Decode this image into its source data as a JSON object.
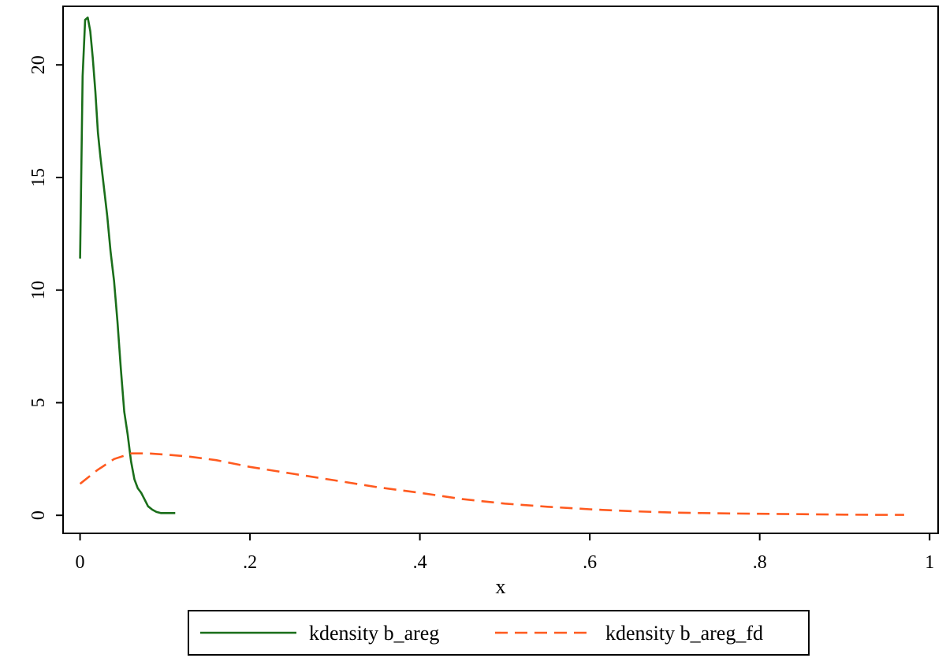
{
  "chart_data": {
    "type": "line",
    "title": "",
    "xlabel": "x",
    "ylabel": "",
    "xlim": [
      -0.02,
      1.01
    ],
    "ylim": [
      -0.8,
      22.6
    ],
    "x_ticks": [
      0,
      0.2,
      0.4,
      0.6,
      0.8,
      1
    ],
    "x_tick_labels": [
      "0",
      ".2",
      ".4",
      ".6",
      ".8",
      "1"
    ],
    "y_ticks": [
      0,
      5,
      10,
      15,
      20
    ],
    "y_tick_labels": [
      "0",
      "5",
      "10",
      "15",
      "20"
    ],
    "grid": false,
    "legend_position": "bottom",
    "series": [
      {
        "name": "kdensity b_areg",
        "color": "#1a6e1a",
        "style": "solid",
        "x": [
          0.0,
          0.003,
          0.006,
          0.009,
          0.012,
          0.015,
          0.018,
          0.021,
          0.024,
          0.028,
          0.032,
          0.036,
          0.04,
          0.044,
          0.048,
          0.052,
          0.056,
          0.06,
          0.064,
          0.068,
          0.072,
          0.076,
          0.08,
          0.085,
          0.09,
          0.095,
          0.1,
          0.105,
          0.112
        ],
        "values": [
          11.4,
          19.5,
          22.0,
          22.1,
          21.5,
          20.3,
          18.8,
          17.0,
          15.9,
          14.6,
          13.3,
          11.7,
          10.4,
          8.6,
          6.5,
          4.6,
          3.6,
          2.4,
          1.6,
          1.2,
          1.0,
          0.7,
          0.4,
          0.25,
          0.15,
          0.1,
          0.1,
          0.1,
          0.1
        ]
      },
      {
        "name": "kdensity b_areg_fd",
        "color": "#ff5a1f",
        "style": "dashed",
        "x": [
          0.0,
          0.02,
          0.04,
          0.06,
          0.08,
          0.1,
          0.13,
          0.16,
          0.2,
          0.25,
          0.3,
          0.35,
          0.4,
          0.45,
          0.5,
          0.55,
          0.6,
          0.65,
          0.7,
          0.75,
          0.8,
          0.85,
          0.9,
          0.95,
          0.97
        ],
        "values": [
          1.4,
          2.0,
          2.5,
          2.75,
          2.75,
          2.7,
          2.6,
          2.45,
          2.15,
          1.85,
          1.55,
          1.25,
          1.0,
          0.72,
          0.52,
          0.38,
          0.27,
          0.18,
          0.12,
          0.09,
          0.07,
          0.05,
          0.03,
          0.02,
          0.02
        ]
      }
    ]
  }
}
